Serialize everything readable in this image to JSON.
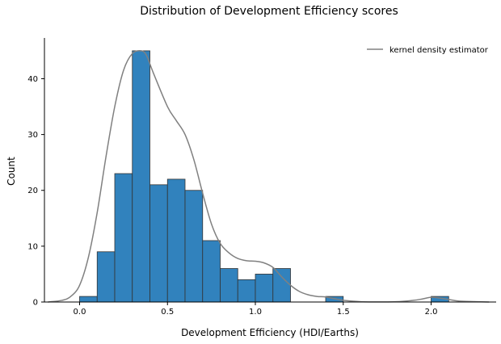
{
  "chart_data": {
    "type": "bar",
    "subtype": "histogram",
    "title": "Distribution of Development Efficiency scores",
    "xlabel": "Development Efficiency (HDI/Earths)",
    "ylabel": "Count",
    "xlim": [
      -0.2,
      2.37
    ],
    "ylim": [
      0,
      47.3
    ],
    "x_ticks": [
      0.0,
      0.5,
      1.0,
      1.5,
      2.0
    ],
    "x_tick_labels": [
      "0.0",
      "0.5",
      "1.0",
      "1.5",
      "2.0"
    ],
    "y_ticks": [
      0,
      10,
      20,
      30,
      40
    ],
    "y_tick_labels": [
      "0",
      "10",
      "20",
      "30",
      "40"
    ],
    "bin_edges": [
      0.0,
      0.1,
      0.2,
      0.3,
      0.4,
      0.5,
      0.6,
      0.7,
      0.8,
      0.9,
      1.0,
      1.1,
      1.2,
      1.3,
      1.4,
      1.5,
      1.6,
      1.7,
      1.8,
      1.9,
      2.0,
      2.1
    ],
    "counts": [
      1,
      9,
      23,
      45,
      21,
      22,
      20,
      11,
      6,
      4,
      5,
      6,
      0,
      0,
      1,
      0,
      0,
      0,
      0,
      0,
      1
    ],
    "bar_color": "#3182bd",
    "bar_edge_color": "#333333",
    "series": [
      {
        "name": "kernel density estimator",
        "type": "line",
        "color": "#808080",
        "x": [
          -0.18,
          -0.1,
          -0.05,
          0.0,
          0.05,
          0.1,
          0.15,
          0.2,
          0.25,
          0.3,
          0.35,
          0.38,
          0.42,
          0.5,
          0.55,
          0.6,
          0.65,
          0.7,
          0.75,
          0.8,
          0.85,
          0.9,
          0.95,
          1.0,
          1.05,
          1.1,
          1.15,
          1.2,
          1.25,
          1.3,
          1.35,
          1.4,
          1.45,
          1.5,
          1.6,
          1.7,
          1.8,
          1.9,
          1.95,
          2.0,
          2.05,
          2.1,
          2.15,
          2.2,
          2.33
        ],
        "y": [
          0.0,
          0.3,
          1.0,
          3.0,
          8.0,
          16.0,
          26.0,
          35.0,
          41.5,
          44.5,
          45.0,
          44.2,
          41.0,
          35.0,
          32.5,
          30.0,
          25.5,
          19.5,
          14.0,
          10.5,
          8.8,
          7.8,
          7.4,
          7.3,
          7.0,
          6.2,
          4.5,
          3.0,
          1.9,
          1.3,
          1.0,
          0.9,
          0.6,
          0.3,
          0.05,
          0.02,
          0.05,
          0.3,
          0.55,
          0.85,
          0.7,
          0.45,
          0.2,
          0.1,
          0.0
        ]
      }
    ],
    "legend": {
      "position": "top-right",
      "frame": false
    },
    "grid": false,
    "spines": [
      "left",
      "bottom"
    ]
  }
}
